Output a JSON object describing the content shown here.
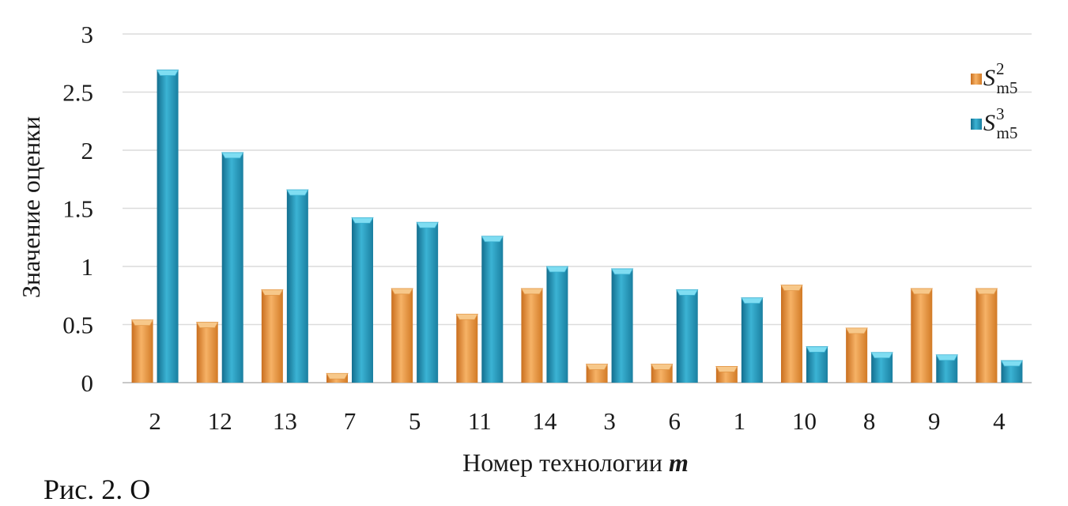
{
  "chart_data": {
    "type": "bar",
    "xlabel": "Номер технологии",
    "xlabel_var": "m",
    "ylabel": "Значение оценки",
    "ylim": [
      0,
      3
    ],
    "yticks": [
      "0",
      "0.5",
      "1",
      "1.5",
      "2",
      "2.5",
      "3"
    ],
    "grid": true,
    "legend_position": "top-right",
    "categories": [
      "2",
      "12",
      "13",
      "7",
      "5",
      "11",
      "14",
      "3",
      "6",
      "1",
      "10",
      "8",
      "9",
      "4"
    ],
    "series": [
      {
        "name": "S",
        "name_sup": "2",
        "name_sub": "m5",
        "color": "#F0A04B",
        "values": [
          0.54,
          0.52,
          0.8,
          0.08,
          0.81,
          0.59,
          0.81,
          0.16,
          0.16,
          0.14,
          0.84,
          0.47,
          0.81,
          0.81
        ]
      },
      {
        "name": "S",
        "name_sup": "3",
        "name_sub": "m5",
        "color": "#2A9BBE",
        "values": [
          2.69,
          1.98,
          1.66,
          1.42,
          1.38,
          1.26,
          1.0,
          0.98,
          0.8,
          0.73,
          0.31,
          0.26,
          0.24,
          0.19
        ]
      }
    ]
  },
  "caption": "Рис. 2. О"
}
